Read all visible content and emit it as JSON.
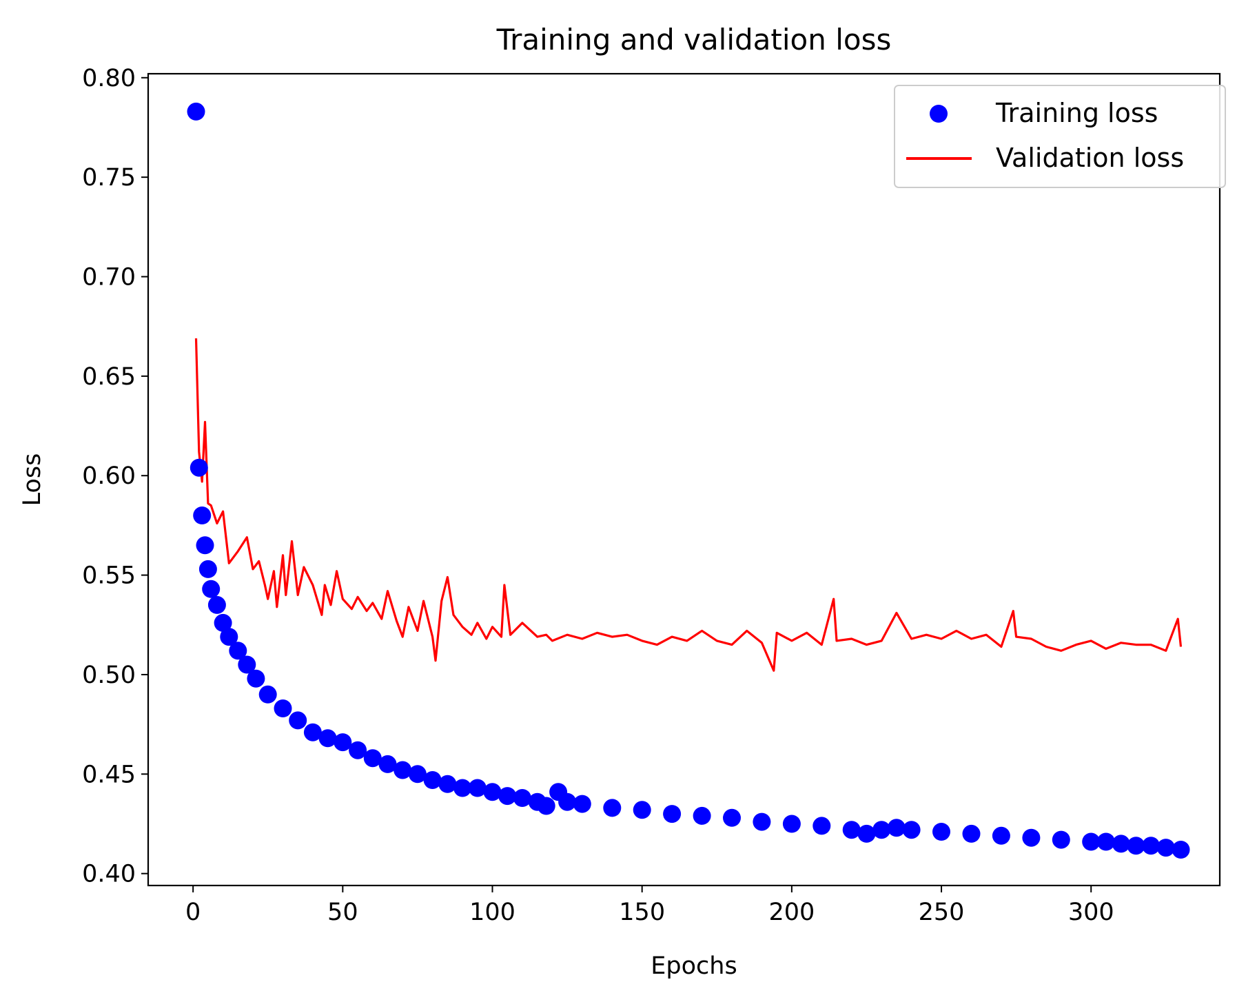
{
  "chart_data": {
    "type": "line",
    "title": "Training and validation loss",
    "xlabel": "Epochs",
    "ylabel": "Loss",
    "xlim": [
      -15,
      343
    ],
    "ylim": [
      0.394,
      0.802
    ],
    "xticks": [
      0,
      50,
      100,
      150,
      200,
      250,
      300
    ],
    "xtick_labels": [
      "0",
      "50",
      "100",
      "150",
      "200",
      "250",
      "300"
    ],
    "yticks": [
      0.4,
      0.45,
      0.5,
      0.55,
      0.6,
      0.65,
      0.7,
      0.75,
      0.8
    ],
    "ytick_labels": [
      "0.40",
      "0.45",
      "0.50",
      "0.55",
      "0.60",
      "0.65",
      "0.70",
      "0.75",
      "0.80"
    ],
    "grid": false,
    "legend_position": "top-right",
    "series": [
      {
        "name": "Training loss",
        "style": "markers",
        "color": "#0000ff",
        "x": [
          1,
          2,
          3,
          4,
          5,
          6,
          8,
          10,
          12,
          15,
          18,
          21,
          25,
          30,
          35,
          40,
          45,
          50,
          55,
          60,
          65,
          70,
          75,
          80,
          85,
          90,
          95,
          100,
          105,
          110,
          115,
          118,
          122,
          125,
          130,
          140,
          150,
          160,
          170,
          180,
          190,
          200,
          210,
          220,
          225,
          230,
          235,
          240,
          250,
          260,
          270,
          280,
          290,
          300,
          305,
          310,
          315,
          320,
          325,
          330
        ],
        "y": [
          0.783,
          0.604,
          0.58,
          0.565,
          0.553,
          0.543,
          0.535,
          0.526,
          0.519,
          0.512,
          0.505,
          0.498,
          0.49,
          0.483,
          0.477,
          0.471,
          0.468,
          0.466,
          0.462,
          0.458,
          0.455,
          0.452,
          0.45,
          0.447,
          0.445,
          0.443,
          0.443,
          0.441,
          0.439,
          0.438,
          0.436,
          0.434,
          0.441,
          0.436,
          0.435,
          0.433,
          0.432,
          0.43,
          0.429,
          0.428,
          0.426,
          0.425,
          0.424,
          0.422,
          0.42,
          0.422,
          0.423,
          0.422,
          0.421,
          0.42,
          0.419,
          0.418,
          0.417,
          0.416,
          0.416,
          0.415,
          0.414,
          0.414,
          0.413,
          0.412
        ]
      },
      {
        "name": "Validation loss",
        "style": "line",
        "color": "#ff0000",
        "x": [
          1,
          2,
          3,
          4,
          5,
          6,
          8,
          10,
          12,
          15,
          18,
          20,
          22,
          24,
          25,
          27,
          28,
          30,
          31,
          33,
          35,
          37,
          40,
          43,
          44,
          46,
          48,
          50,
          53,
          55,
          58,
          60,
          63,
          65,
          68,
          70,
          72,
          75,
          77,
          80,
          81,
          83,
          85,
          87,
          90,
          93,
          95,
          98,
          100,
          103,
          104,
          106,
          110,
          115,
          118,
          120,
          125,
          130,
          135,
          140,
          145,
          150,
          155,
          160,
          165,
          170,
          175,
          180,
          185,
          190,
          194,
          195,
          200,
          205,
          210,
          214,
          215,
          220,
          225,
          230,
          235,
          240,
          245,
          250,
          255,
          260,
          265,
          270,
          274,
          275,
          280,
          285,
          290,
          295,
          300,
          305,
          310,
          315,
          320,
          325,
          329,
          330
        ],
        "y": [
          0.669,
          0.612,
          0.597,
          0.627,
          0.586,
          0.585,
          0.576,
          0.582,
          0.556,
          0.562,
          0.569,
          0.553,
          0.557,
          0.545,
          0.538,
          0.552,
          0.534,
          0.56,
          0.54,
          0.567,
          0.54,
          0.554,
          0.545,
          0.53,
          0.545,
          0.535,
          0.552,
          0.538,
          0.533,
          0.539,
          0.532,
          0.536,
          0.528,
          0.542,
          0.527,
          0.519,
          0.534,
          0.522,
          0.537,
          0.519,
          0.507,
          0.537,
          0.549,
          0.53,
          0.524,
          0.52,
          0.526,
          0.518,
          0.524,
          0.519,
          0.545,
          0.52,
          0.526,
          0.519,
          0.52,
          0.517,
          0.52,
          0.518,
          0.521,
          0.519,
          0.52,
          0.517,
          0.515,
          0.519,
          0.517,
          0.522,
          0.517,
          0.515,
          0.522,
          0.516,
          0.502,
          0.521,
          0.517,
          0.521,
          0.515,
          0.538,
          0.517,
          0.518,
          0.515,
          0.517,
          0.531,
          0.518,
          0.52,
          0.518,
          0.522,
          0.518,
          0.52,
          0.514,
          0.532,
          0.519,
          0.518,
          0.514,
          0.512,
          0.515,
          0.517,
          0.513,
          0.516,
          0.515,
          0.515,
          0.512,
          0.528,
          0.514
        ]
      }
    ]
  }
}
